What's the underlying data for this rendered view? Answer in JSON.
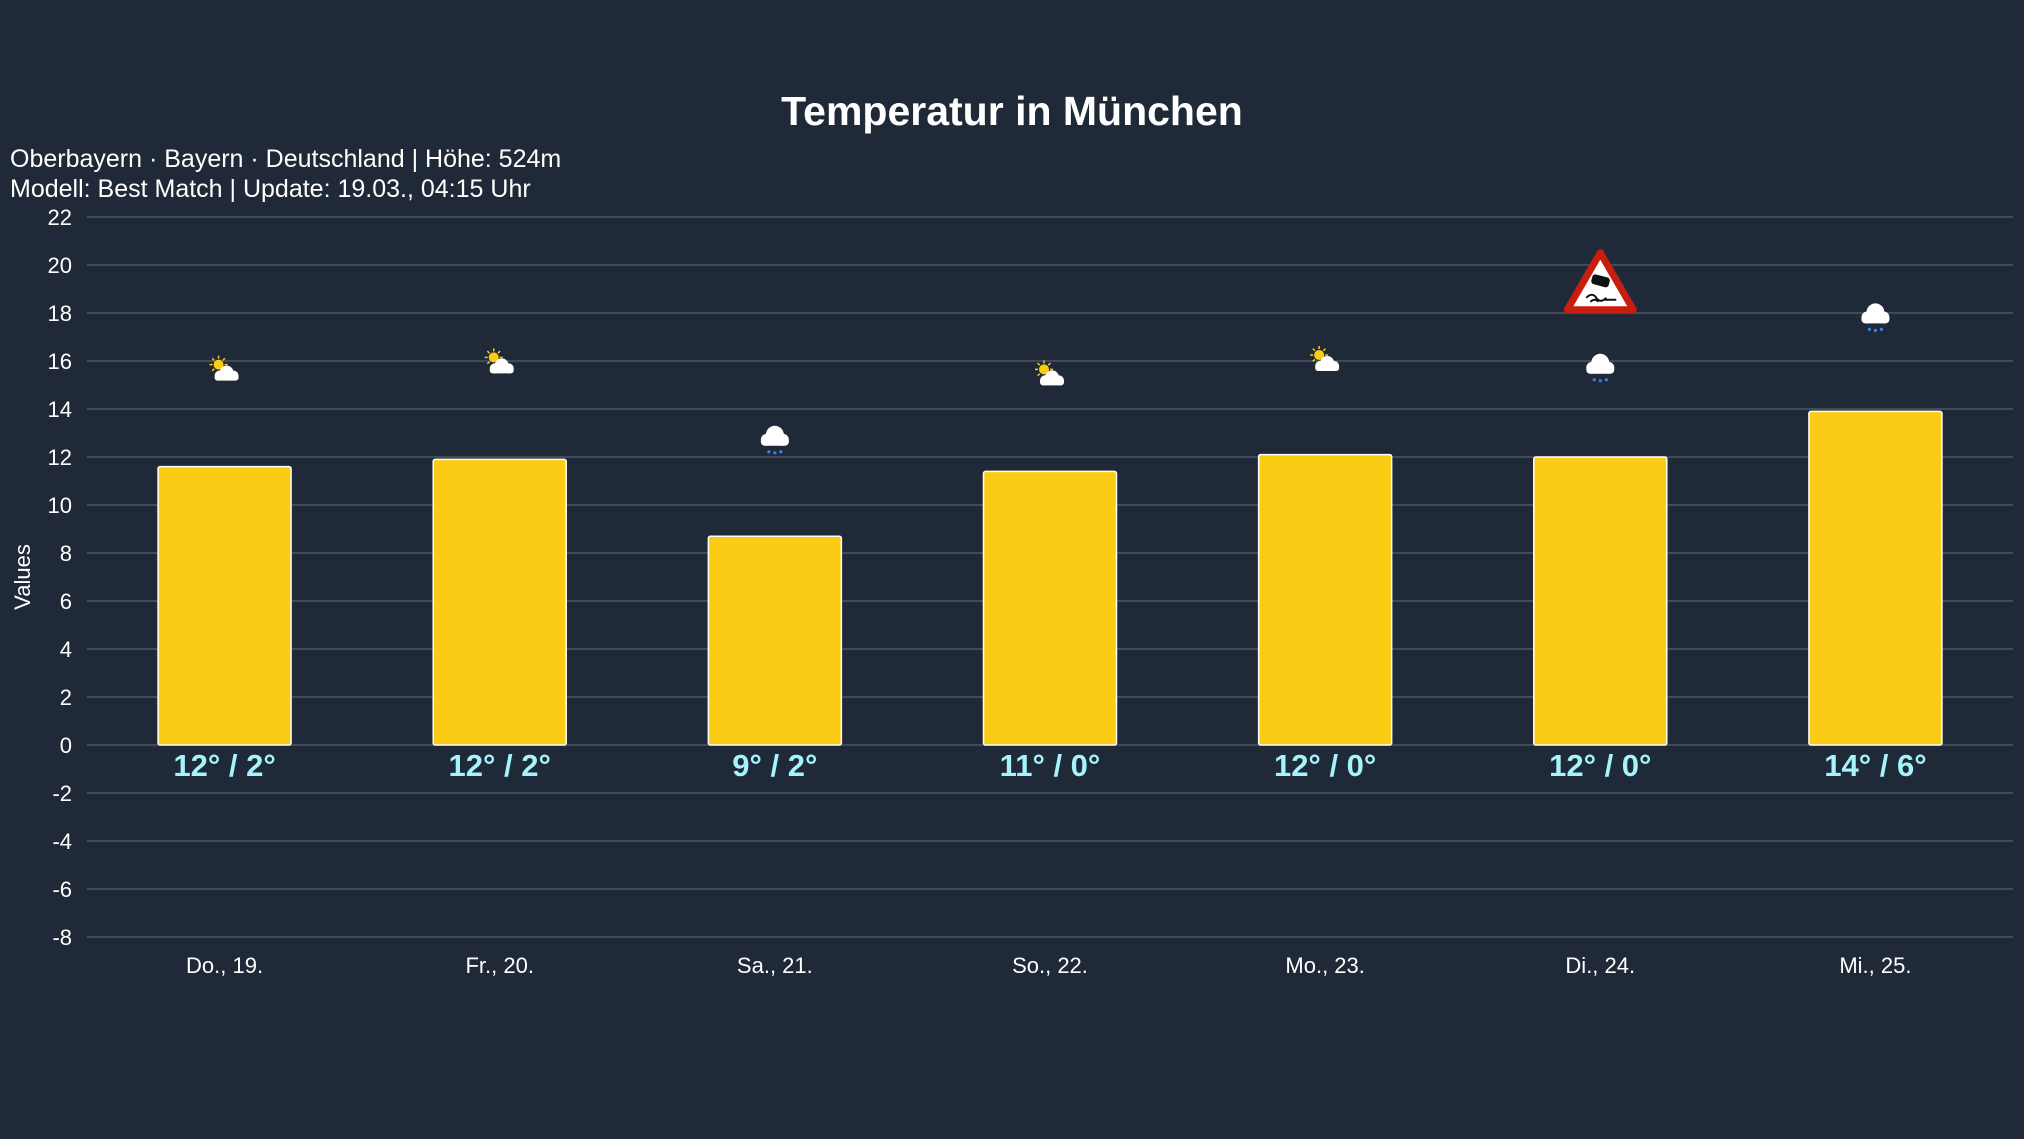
{
  "header": {
    "title": "Temperatur in München",
    "subtitle_line1": "Oberbayern · Bayern · Deutschland | Höhe: 524m",
    "subtitle_line2": "Modell: Best Match | Update: 19.03., 04:15 Uhr"
  },
  "chart_data": {
    "type": "bar",
    "title": "Temperatur in München",
    "xlabel": "",
    "ylabel": "Values",
    "ylim": [
      -8,
      22
    ],
    "yticks": [
      22,
      20,
      18,
      16,
      14,
      12,
      10,
      8,
      6,
      4,
      2,
      0,
      -2,
      -4,
      -6,
      -8
    ],
    "grid": true,
    "categories": [
      "Do., 19.",
      "Fr., 20.",
      "Sa., 21.",
      "So., 22.",
      "Mo., 23.",
      "Di., 24.",
      "Mi., 25."
    ],
    "values": [
      11.6,
      11.9,
      8.7,
      11.4,
      12.1,
      12.0,
      13.9
    ],
    "labels": [
      "12° / 2°",
      "12° / 2°",
      "9° / 2°",
      "11° / 0°",
      "12° / 0°",
      "12° / 0°",
      "14° / 6°"
    ],
    "weather_icons": [
      "partly-sunny-icon",
      "partly-sunny-icon",
      "cloud-rain-icon",
      "partly-sunny-icon",
      "partly-sunny-icon",
      "cloud-rain-icon",
      "cloud-rain-icon"
    ],
    "warnings": [
      null,
      null,
      null,
      null,
      null,
      "slippery-road-warning-icon",
      null
    ],
    "colors": {
      "bar": "#facc15",
      "bar_border": "#ffffff",
      "label": "#a5f3fc",
      "grid": "#4b5563",
      "background": "#1f2937",
      "rain": "#3b82f6"
    }
  }
}
